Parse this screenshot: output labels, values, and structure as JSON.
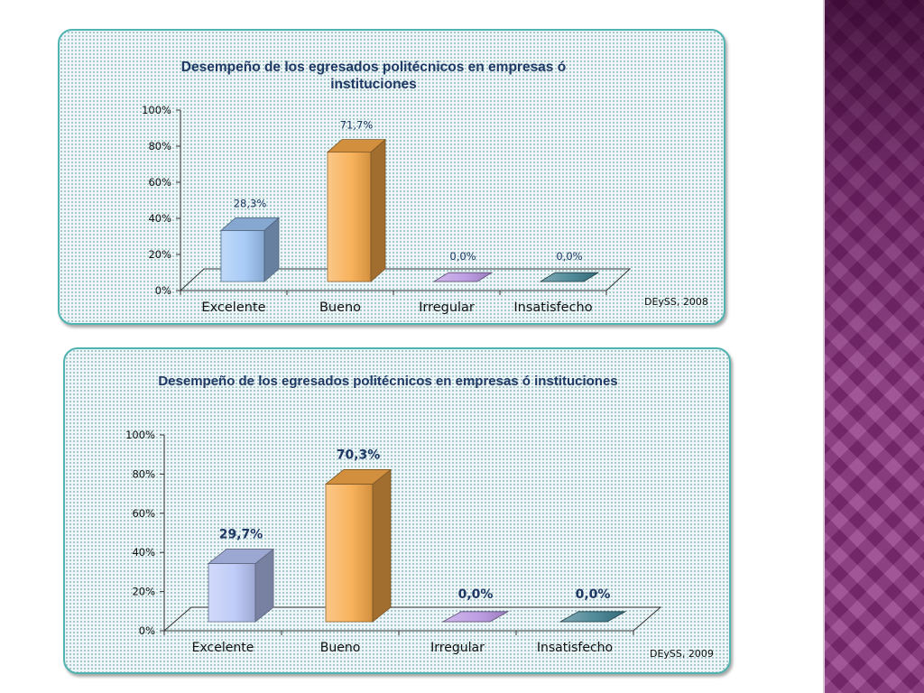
{
  "slide": {
    "side_band_color": "#8a2f7e"
  },
  "charts": [
    {
      "title": "Desempeño  de los egresados politécnicos en empresas ó instituciones",
      "source": "DEySS, 2008"
    },
    {
      "title": "Desempeño de los egresados politécnicos en empresas ó instituciones",
      "source": "DEySS, 2009"
    }
  ],
  "chart_data": [
    {
      "type": "bar",
      "title": "Desempeño  de los egresados politécnicos en empresas ó instituciones",
      "categories": [
        "Excelente",
        "Bueno",
        "Irregular",
        "Insatisfecho"
      ],
      "values": [
        28.3,
        71.7,
        0.0,
        0.0
      ],
      "value_labels": [
        "28,3%",
        "71,7%",
        "0,0%",
        "0,0%"
      ],
      "y_ticks": [
        "0%",
        "20%",
        "40%",
        "60%",
        "80%",
        "100%"
      ],
      "ylim": [
        0,
        100
      ],
      "colors": [
        "#9ec5f5",
        "#f7a94a",
        "#b693e0",
        "#3d7c8c"
      ],
      "annotation": "DEySS, 2008"
    },
    {
      "type": "bar",
      "title": "Desempeño de los egresados politécnicos en empresas ó instituciones",
      "categories": [
        "Excelente",
        "Bueno",
        "Irregular",
        "Insatisfecho"
      ],
      "values": [
        29.7,
        70.3,
        0.0,
        0.0
      ],
      "value_labels": [
        "29,7%",
        "70,3%",
        "0,0%",
        "0,0%"
      ],
      "y_ticks": [
        "0%",
        "20%",
        "40%",
        "60%",
        "80%",
        "100%"
      ],
      "ylim": [
        0,
        100
      ],
      "colors": [
        "#b9c6f7",
        "#f7a94a",
        "#b693e0",
        "#3d7c8c"
      ],
      "annotation": "DEySS, 2009"
    }
  ]
}
